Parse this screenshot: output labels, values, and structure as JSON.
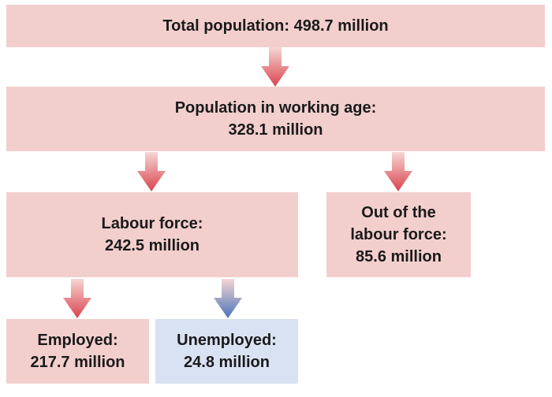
{
  "colors": {
    "box_pink": "#f2cfcd",
    "box_blue": "#d9e2f3",
    "arrow_red": "#d9434e",
    "arrow_pale": "#f6d6d4",
    "arrow_blue": "#4a74b8"
  },
  "boxes": {
    "total": {
      "line1": "Total population: 498.7 million"
    },
    "working_age": {
      "line1": "Population in working age:",
      "line2": "328.1 million"
    },
    "labour_force": {
      "line1": "Labour force:",
      "line2": "242.5 million"
    },
    "out_of_labour_force": {
      "line1": "Out of the",
      "line2": "labour force:",
      "line3": "85.6 million"
    },
    "employed": {
      "line1": "Employed:",
      "line2": "217.7 million"
    },
    "unemployed": {
      "line1": "Unemployed:",
      "line2": "24.8 million"
    }
  }
}
